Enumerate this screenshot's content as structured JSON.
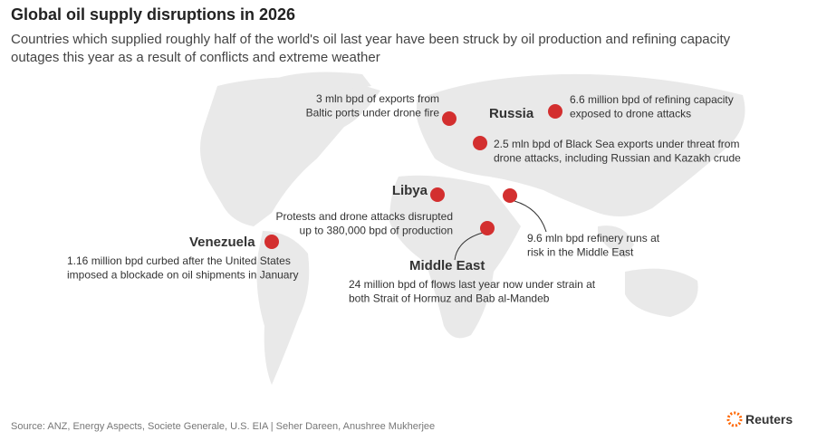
{
  "header": {
    "title": "Global oil supply disruptions in 2026",
    "subtitle": [
      "Countries which supplied roughly half of the world's oil last year have been struck by oil production and refining capacity",
      "outages this year as a result of conflicts and extreme weather"
    ]
  },
  "places": [
    {
      "lines": [
        "3 mln bpd of exports from",
        "Baltic ports under drone fire"
      ]
    },
    {
      "label": "Russia",
      "lines": [
        "6.6 million bpd of refining capacity",
        "exposed to drone attacks"
      ]
    },
    {
      "lines": [
        "2.5 mln bpd of Black Sea exports under threat from",
        "drone attacks, including Russian and Kazakh crude"
      ]
    },
    {
      "label": "Libya",
      "lines": [
        "Protests and drone attacks disrupted",
        "up to 380,000 bpd of production"
      ]
    },
    {
      "lines": [
        "9.6 mln bpd refinery runs at",
        "risk in the Middle East"
      ]
    },
    {
      "label": "Middle East",
      "lines": [
        "24 million bpd of flows last year now under strain at",
        "both Strait of Hormuz and Bab al-Mandeb"
      ]
    },
    {
      "label": "Venezuela",
      "lines": [
        "1.16 million bpd curbed after the United States",
        "imposed a blockade on oil shipments in January"
      ]
    }
  ],
  "source": "Source: ANZ, Energy Aspects, Societe Generale, U.S. EIA | Seher Dareen, Anushree Mukherjee",
  "logo": "Reuters"
}
